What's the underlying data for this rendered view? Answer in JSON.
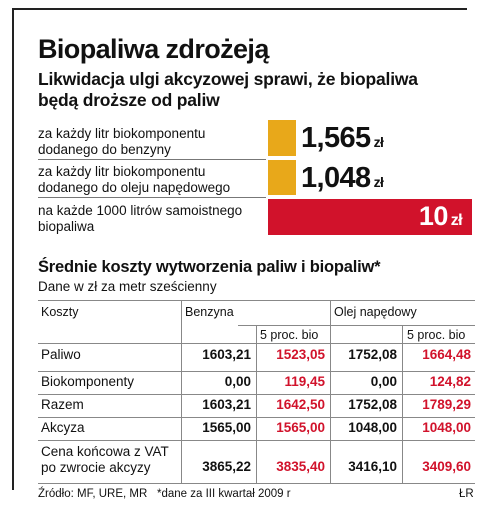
{
  "title": "Biopaliwa zdrożeją",
  "subtitle": "Likwidacja ulgi akcyzowej sprawi, że biopaliwa będą droższe od paliw",
  "colors": {
    "bar_orange": "#e8a81a",
    "bar_red": "#d1122b",
    "value_red": "#d1122b",
    "rule": "#888888"
  },
  "chart_data": [
    {
      "type": "bar",
      "categories": [
        "za każdy litr biokomponentu dodanego do benzyny",
        "za każdy litr biokomponentu dodanego do oleju napędowego",
        "na każde 1000 litrów samoistnego biopaliwa"
      ],
      "values": [
        1.565,
        1.048,
        10
      ],
      "value_labels": [
        "1,565",
        "1,048",
        "10"
      ],
      "unit": "zł",
      "bar_colors": [
        "#e8a81a",
        "#e8a81a",
        "#d1122b"
      ],
      "xlim": [
        0,
        10
      ]
    },
    {
      "type": "table",
      "title": "Średnie koszty wytworzenia paliw i biopaliw*",
      "subtitle": "Dane w zł za metr sześcienny",
      "header": {
        "col_label": "Koszty",
        "group1": "Benzyna",
        "group2": "Olej napędowy",
        "sub_bio": "5 proc. bio"
      },
      "rows": [
        {
          "label": "Paliwo",
          "values": [
            "1603,21",
            "1523,05",
            "1752,08",
            "1664,48"
          ]
        },
        {
          "label": "Biokomponenty",
          "values": [
            "0,00",
            "119,45",
            "0,00",
            "124,82"
          ]
        },
        {
          "label": "Razem",
          "values": [
            "1603,21",
            "1642,50",
            "1752,08",
            "1789,29"
          ]
        },
        {
          "label": "Akcyza",
          "values": [
            "1565,00",
            "1565,00",
            "1048,00",
            "1048,00"
          ]
        },
        {
          "label": "Cena końcowa z VAT po zwrocie akcyzy",
          "values": [
            "3865,22",
            "3835,40",
            "3416,10",
            "3409,60"
          ]
        }
      ]
    }
  ],
  "footer": {
    "source": "Źródło: MF, URE, MR",
    "note": "*dane za III kwartał 2009 r",
    "author": "ŁR"
  }
}
